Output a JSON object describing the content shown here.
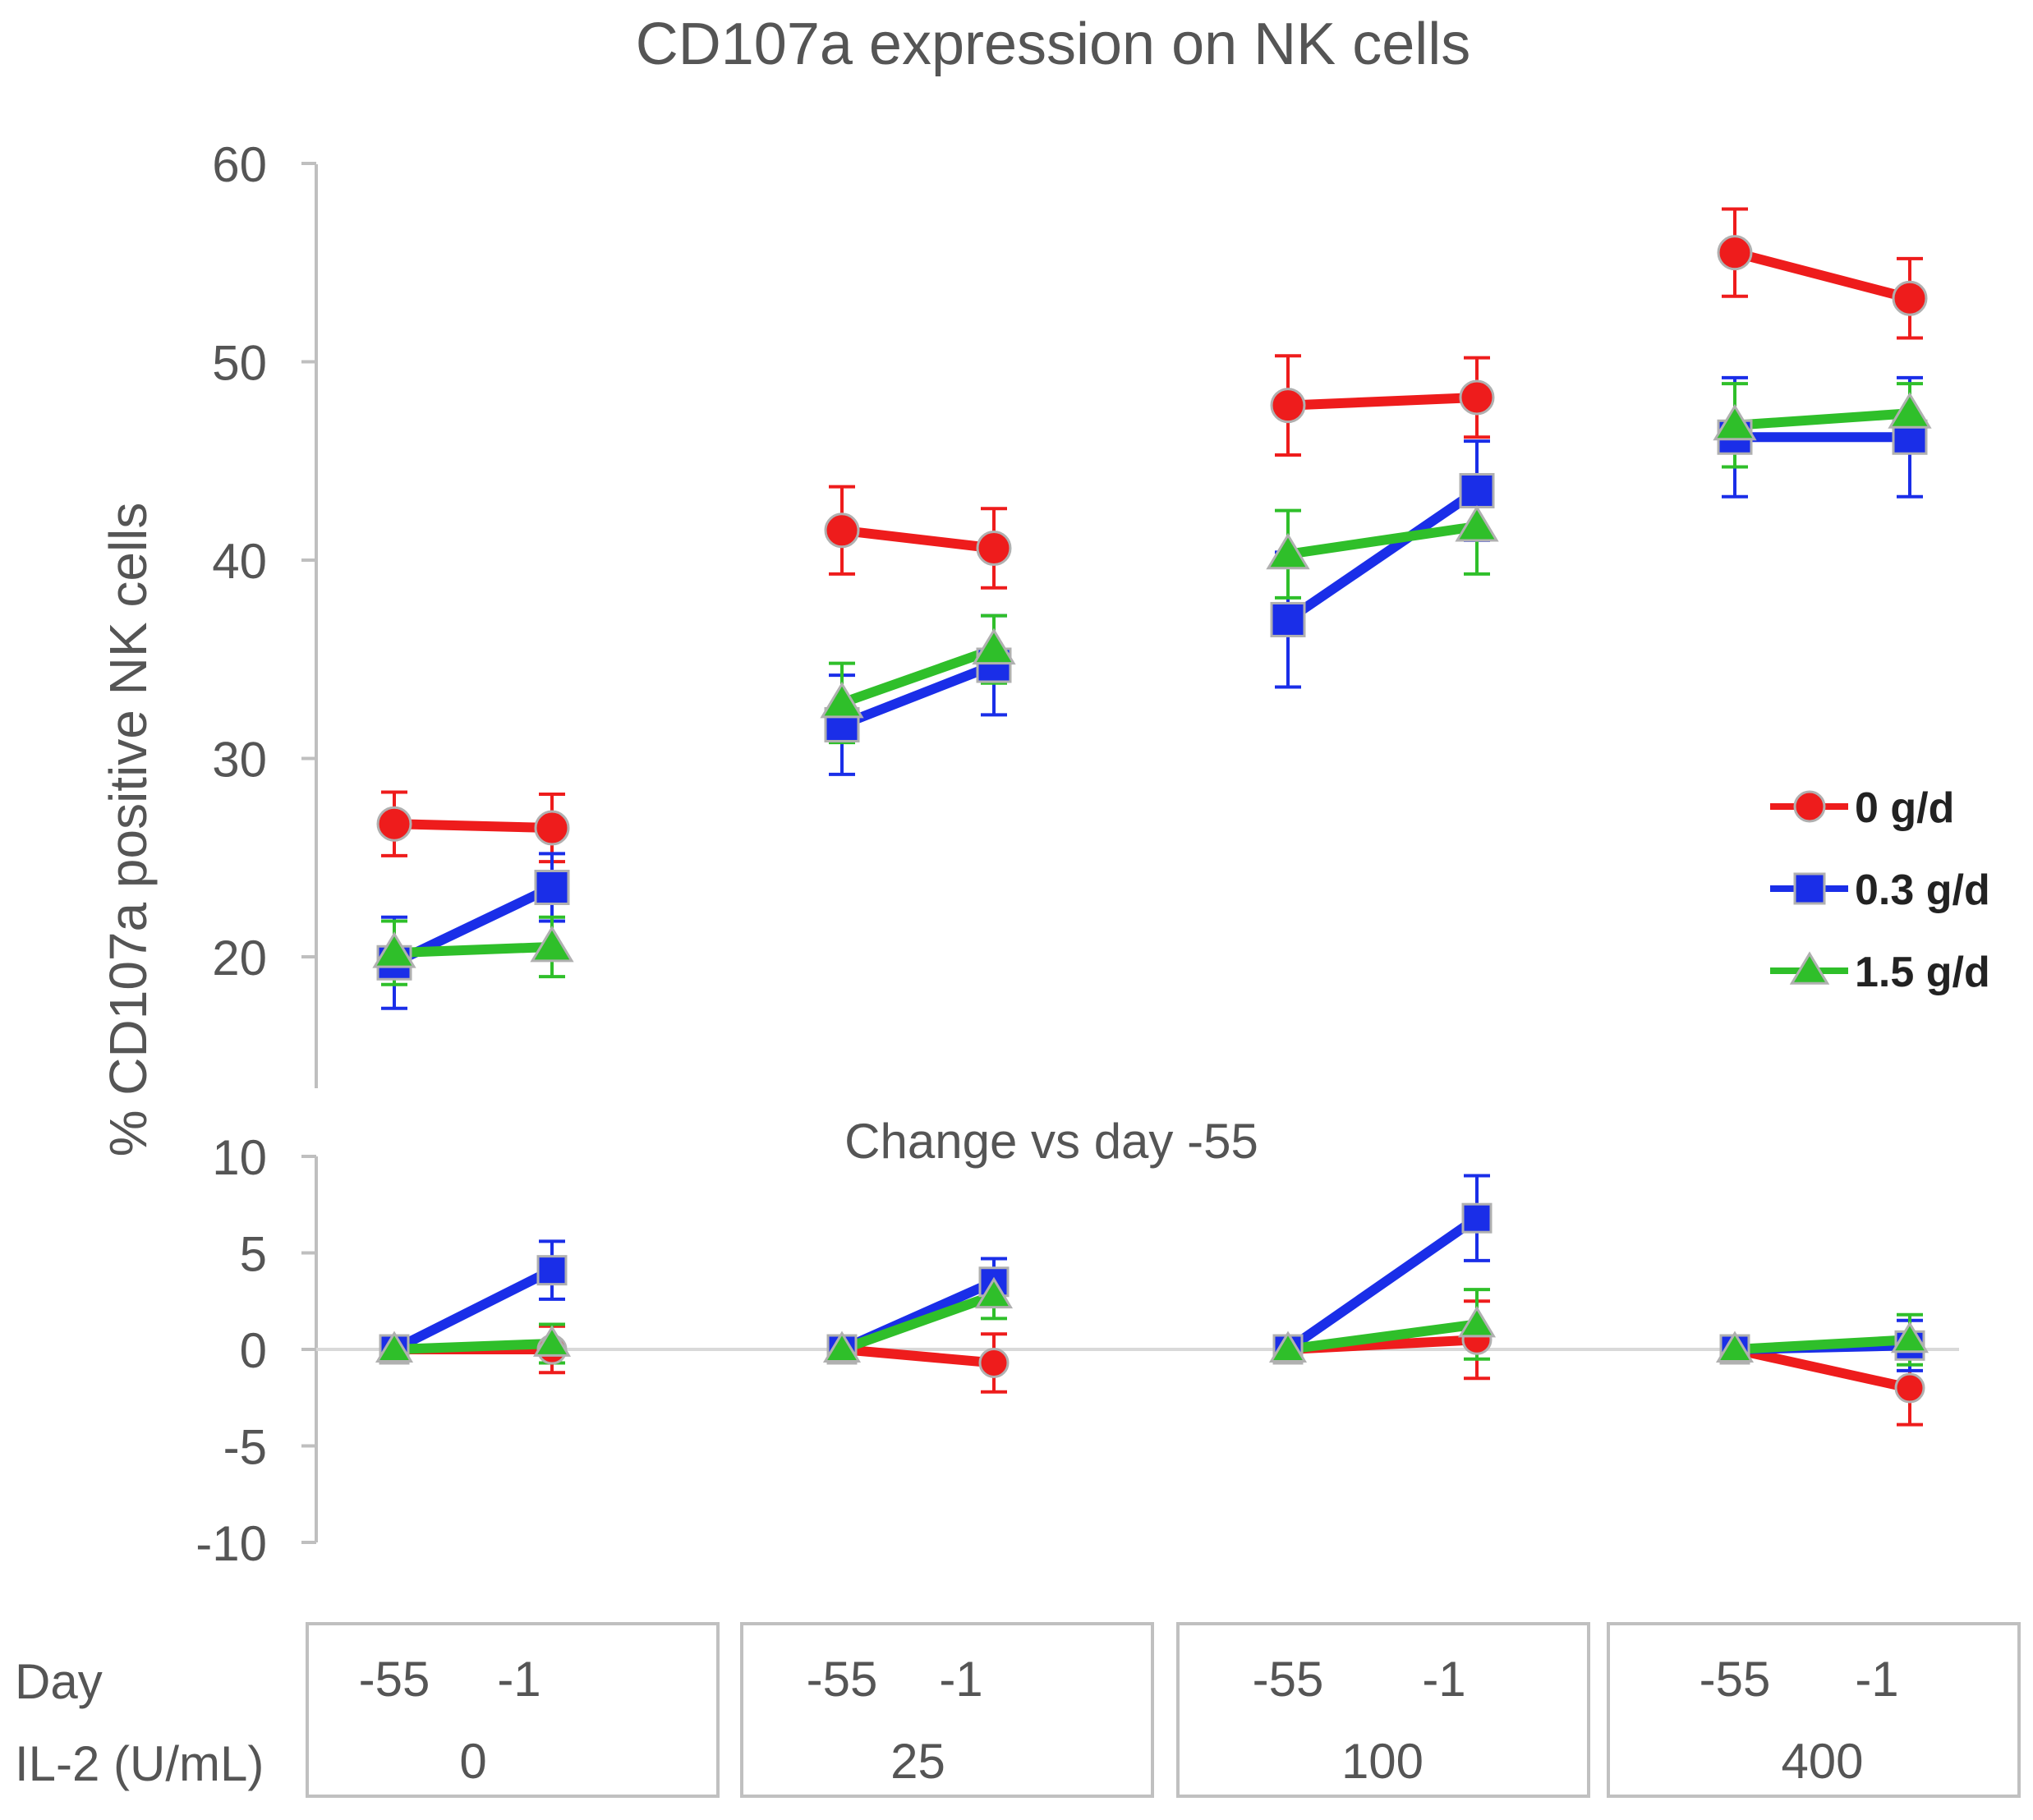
{
  "chart_data": [
    {
      "type": "line",
      "title": "CD107a expression on NK cells",
      "ylabel": "% CD107a  positive NK cells",
      "ylim": [
        15,
        60
      ],
      "yticks": [
        20,
        30,
        40,
        50,
        60
      ],
      "groups": [
        {
          "il2": "0",
          "days": [
            "-55",
            "-1"
          ]
        },
        {
          "il2": "25",
          "days": [
            "-55",
            "-1"
          ]
        },
        {
          "il2": "100",
          "days": [
            "-55",
            "-1"
          ]
        },
        {
          "il2": "400",
          "days": [
            "-55",
            "-1"
          ]
        }
      ],
      "series": [
        {
          "name": "0 g/d",
          "color": "#ee1c1c",
          "marker": "circle",
          "values": [
            [
              26.7,
              26.5
            ],
            [
              41.5,
              40.6
            ],
            [
              47.8,
              48.2
            ],
            [
              55.5,
              53.2
            ]
          ],
          "errors": [
            [
              1.6,
              1.7
            ],
            [
              2.2,
              2.0
            ],
            [
              2.5,
              2.0
            ],
            [
              2.2,
              2.0
            ]
          ]
        },
        {
          "name": "0.3 g/d",
          "color": "#1a2ee8",
          "marker": "square",
          "values": [
            [
              19.7,
              23.5
            ],
            [
              31.7,
              34.7
            ],
            [
              37.0,
              43.5
            ],
            [
              46.2,
              46.2
            ]
          ],
          "errors": [
            [
              2.3,
              1.7
            ],
            [
              2.5,
              2.5
            ],
            [
              3.4,
              2.5
            ],
            [
              3.0,
              3.0
            ]
          ]
        },
        {
          "name": "1.5 g/d",
          "color": "#2fbf2a",
          "marker": "triangle",
          "values": [
            [
              20.2,
              20.5
            ],
            [
              32.8,
              35.5
            ],
            [
              40.3,
              41.7
            ],
            [
              46.8,
              47.4
            ]
          ],
          "errors": [
            [
              1.6,
              1.5
            ],
            [
              2.0,
              1.7
            ],
            [
              2.2,
              2.4
            ],
            [
              2.1,
              1.5
            ]
          ]
        }
      ]
    },
    {
      "type": "line",
      "title": "Change vs day -55",
      "ylim": [
        -10,
        10
      ],
      "yticks": [
        -10,
        -5,
        0,
        5,
        10
      ],
      "series": [
        {
          "name": "0 g/d",
          "color": "#ee1c1c",
          "marker": "circle",
          "values": [
            [
              0,
              0
            ],
            [
              0,
              -0.7
            ],
            [
              0,
              0.5
            ],
            [
              0,
              -2.0
            ]
          ],
          "errors": [
            [
              0,
              1.2
            ],
            [
              0,
              1.5
            ],
            [
              0,
              2.0
            ],
            [
              0,
              1.9
            ]
          ]
        },
        {
          "name": "0.3 g/d",
          "color": "#1a2ee8",
          "marker": "square",
          "values": [
            [
              0,
              4.1
            ],
            [
              0,
              3.5
            ],
            [
              0,
              6.8
            ],
            [
              0,
              0.2
            ]
          ],
          "errors": [
            [
              0,
              1.5
            ],
            [
              0,
              1.2
            ],
            [
              0,
              2.2
            ],
            [
              0,
              1.3
            ]
          ]
        },
        {
          "name": "1.5 g/d",
          "color": "#2fbf2a",
          "marker": "triangle",
          "values": [
            [
              0,
              0.3
            ],
            [
              0,
              2.8
            ],
            [
              0,
              1.3
            ],
            [
              0,
              0.5
            ]
          ],
          "errors": [
            [
              0,
              1.0
            ],
            [
              0,
              1.2
            ],
            [
              0,
              1.8
            ],
            [
              0,
              1.3
            ]
          ]
        }
      ]
    }
  ],
  "axis_table": {
    "row1_label": "Day",
    "row2_label": "IL-2 (U/mL)"
  }
}
